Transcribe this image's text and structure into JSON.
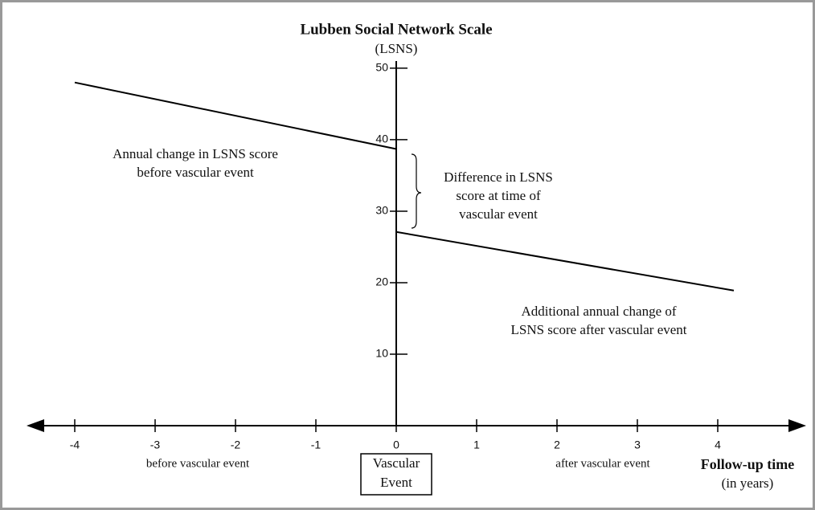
{
  "chart_data": {
    "type": "line",
    "title": "Lubben Social Network Scale",
    "y_label": "(LSNS)",
    "x_label": "Follow-up time",
    "x_sublabel": "(in years)",
    "x_region_labels": [
      "before vascular event",
      "after vascular event"
    ],
    "event_label": [
      "Vascular",
      "Event"
    ],
    "annotations": [
      [
        "Annual change in LSNS score",
        "before vascular event"
      ],
      [
        "Difference in LSNS",
        "score at time of",
        "vascular event"
      ],
      [
        "Additional annual change of",
        "LSNS score after vascular event"
      ]
    ],
    "series": [
      {
        "color": "#000000",
        "x": [
          -4,
          0
        ],
        "values": [
          48,
          38.7
        ]
      },
      {
        "color": "#000000",
        "x": [
          0,
          4.2
        ],
        "values": [
          27.1,
          18.9
        ]
      }
    ],
    "xlim": [
      -4.6,
      5.1
    ],
    "ylim": [
      0,
      51
    ],
    "xticks": [
      -4,
      -3,
      -2,
      -1,
      0,
      1,
      2,
      3,
      4
    ],
    "yticks": [
      10,
      20,
      30,
      40,
      50
    ],
    "grid": false
  }
}
